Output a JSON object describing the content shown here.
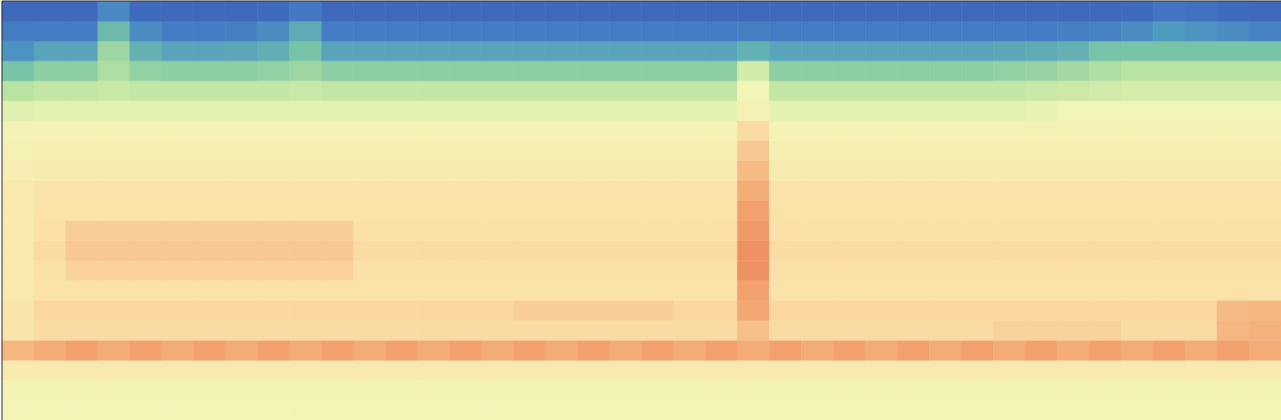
{
  "chart_data": {
    "type": "heatmap",
    "tick_labels": false,
    "colorbar": {
      "range": [
        0,
        100
      ],
      "colors": [
        "#3b5fb5",
        "#4479c4",
        "#4f9bc0",
        "#74c2a8",
        "#b9e3a0",
        "#f3f6b8",
        "#fbe0a8",
        "#f3a570",
        "#d9452c"
      ]
    },
    "cells": [
      [
        5,
        5,
        5,
        18,
        6,
        5,
        5,
        5,
        6,
        12,
        5,
        5,
        5,
        5,
        5,
        5,
        5,
        5,
        5,
        5,
        5,
        5,
        5,
        5,
        5,
        5,
        5,
        5,
        5,
        5,
        5,
        5,
        5,
        5,
        5,
        6,
        10,
        9,
        6,
        5
      ],
      [
        14,
        14,
        14,
        35,
        20,
        14,
        14,
        15,
        20,
        30,
        14,
        14,
        14,
        14,
        14,
        14,
        14,
        14,
        14,
        14,
        14,
        14,
        14,
        15,
        14,
        14,
        14,
        14,
        14,
        14,
        14,
        14,
        14,
        15,
        16,
        20,
        25,
        22,
        20,
        16
      ],
      [
        22,
        28,
        28,
        45,
        32,
        28,
        28,
        29,
        31,
        38,
        28,
        28,
        28,
        28,
        28,
        28,
        28,
        28,
        28,
        28,
        28,
        28,
        28,
        32,
        28,
        28,
        28,
        28,
        28,
        28,
        28,
        29,
        30,
        32,
        38,
        38,
        38,
        38,
        38,
        38
      ],
      [
        38,
        42,
        42,
        48,
        43,
        42,
        42,
        42,
        43,
        45,
        42,
        42,
        42,
        42,
        42,
        42,
        42,
        42,
        42,
        42,
        42,
        42,
        42,
        55,
        42,
        42,
        42,
        42,
        42,
        42,
        42,
        43,
        44,
        46,
        48,
        50,
        50,
        50,
        50,
        50
      ],
      [
        50,
        52,
        52,
        53,
        52,
        52,
        52,
        52,
        52,
        53,
        52,
        52,
        52,
        52,
        52,
        52,
        52,
        52,
        52,
        52,
        52,
        52,
        52,
        62,
        52,
        52,
        52,
        52,
        52,
        52,
        52,
        52,
        53,
        54,
        55,
        56,
        56,
        56,
        56,
        56
      ],
      [
        58,
        59,
        59,
        59,
        59,
        59,
        59,
        59,
        59,
        59,
        59,
        59,
        59,
        59,
        59,
        59,
        59,
        59,
        59,
        59,
        59,
        59,
        59,
        66,
        59,
        59,
        59,
        59,
        59,
        59,
        59,
        59,
        60,
        62,
        62,
        62,
        62,
        62,
        62,
        62
      ],
      [
        64,
        65,
        65,
        65,
        65,
        65,
        65,
        65,
        65,
        65,
        65,
        65,
        65,
        65,
        65,
        65,
        65,
        65,
        65,
        65,
        65,
        65,
        65,
        76,
        65,
        65,
        65,
        65,
        65,
        65,
        65,
        65,
        65,
        65,
        65,
        65,
        65,
        65,
        65,
        65
      ],
      [
        66,
        67,
        67,
        67,
        67,
        67,
        67,
        67,
        67,
        67,
        67,
        67,
        67,
        67,
        67,
        67,
        67,
        67,
        67,
        67,
        67,
        67,
        67,
        80,
        67,
        67,
        67,
        67,
        67,
        67,
        67,
        67,
        67,
        67,
        67,
        67,
        67,
        67,
        67,
        67
      ],
      [
        68,
        69,
        69,
        69,
        69,
        69,
        69,
        69,
        69,
        69,
        69,
        69,
        69,
        69,
        69,
        69,
        69,
        69,
        69,
        69,
        69,
        69,
        69,
        83,
        69,
        69,
        69,
        69,
        69,
        69,
        69,
        69,
        69,
        69,
        69,
        69,
        69,
        69,
        69,
        69
      ],
      [
        70,
        73,
        73,
        73,
        73,
        73,
        73,
        73,
        73,
        73,
        73,
        73,
        73,
        73,
        73,
        73,
        73,
        73,
        73,
        73,
        73,
        73,
        73,
        86,
        73,
        73,
        73,
        73,
        73,
        73,
        73,
        73,
        73,
        73,
        73,
        73,
        73,
        73,
        73,
        73
      ],
      [
        70,
        74,
        74,
        74,
        74,
        74,
        74,
        74,
        74,
        74,
        74,
        74,
        74,
        74,
        74,
        74,
        74,
        74,
        74,
        74,
        74,
        74,
        74,
        88,
        74,
        74,
        74,
        74,
        74,
        74,
        74,
        74,
        74,
        74,
        74,
        74,
        74,
        74,
        74,
        74
      ],
      [
        70,
        75,
        79,
        79,
        79,
        79,
        79,
        79,
        79,
        79,
        79,
        75,
        75,
        75,
        75,
        75,
        75,
        75,
        75,
        75,
        75,
        75,
        75,
        89,
        75,
        75,
        75,
        75,
        75,
        75,
        75,
        75,
        75,
        75,
        75,
        75,
        75,
        75,
        75,
        75
      ],
      [
        70,
        76,
        80,
        80,
        80,
        80,
        80,
        80,
        80,
        80,
        80,
        76,
        76,
        76,
        76,
        76,
        76,
        76,
        76,
        76,
        76,
        76,
        76,
        90,
        76,
        76,
        76,
        76,
        76,
        76,
        76,
        76,
        76,
        76,
        76,
        76,
        76,
        76,
        76,
        76
      ],
      [
        70,
        75,
        78,
        78,
        78,
        78,
        78,
        78,
        78,
        78,
        78,
        75,
        75,
        75,
        75,
        75,
        75,
        75,
        75,
        75,
        75,
        75,
        75,
        90,
        75,
        75,
        75,
        75,
        75,
        75,
        75,
        75,
        75,
        75,
        75,
        75,
        75,
        75,
        75,
        75
      ],
      [
        70,
        74,
        74,
        74,
        74,
        74,
        74,
        74,
        74,
        74,
        74,
        74,
        74,
        74,
        74,
        74,
        74,
        74,
        74,
        74,
        74,
        74,
        74,
        88,
        74,
        74,
        74,
        74,
        74,
        74,
        74,
        74,
        74,
        74,
        74,
        74,
        74,
        74,
        74,
        74
      ],
      [
        72,
        77,
        77,
        77,
        77,
        77,
        77,
        77,
        77,
        77,
        77,
        77,
        77,
        77,
        77,
        77,
        79,
        79,
        79,
        79,
        79,
        77,
        77,
        87,
        77,
        77,
        77,
        77,
        77,
        77,
        77,
        77,
        77,
        77,
        77,
        77,
        77,
        77,
        83,
        84
      ],
      [
        72,
        76,
        76,
        76,
        76,
        76,
        76,
        76,
        76,
        76,
        76,
        76,
        76,
        76,
        76,
        76,
        76,
        76,
        76,
        76,
        76,
        76,
        76,
        82,
        76,
        76,
        76,
        76,
        76,
        76,
        76,
        78,
        78,
        78,
        78,
        76,
        76,
        76,
        84,
        85
      ],
      [
        84,
        86,
        88,
        86,
        88,
        86,
        88,
        86,
        88,
        86,
        88,
        86,
        88,
        86,
        88,
        86,
        88,
        86,
        88,
        86,
        88,
        86,
        88,
        86,
        88,
        86,
        88,
        86,
        88,
        86,
        88,
        86,
        88,
        86,
        88,
        86,
        88,
        86,
        88,
        86
      ],
      [
        70,
        70,
        70,
        70,
        70,
        70,
        70,
        70,
        70,
        70,
        70,
        70,
        70,
        70,
        70,
        70,
        70,
        70,
        70,
        70,
        70,
        70,
        70,
        70,
        70,
        70,
        70,
        70,
        70,
        70,
        70,
        70,
        70,
        70,
        70,
        70,
        70,
        70,
        70,
        70
      ],
      [
        64,
        64,
        64,
        64,
        64,
        64,
        64,
        64,
        64,
        64,
        64,
        64,
        64,
        64,
        64,
        64,
        64,
        64,
        64,
        64,
        64,
        64,
        64,
        64,
        64,
        64,
        64,
        64,
        64,
        64,
        64,
        64,
        64,
        64,
        64,
        64,
        64,
        64,
        64,
        64
      ],
      [
        63,
        63,
        63,
        63,
        63,
        63,
        63,
        63,
        63,
        63,
        63,
        63,
        63,
        63,
        63,
        63,
        63,
        63,
        63,
        63,
        63,
        63,
        63,
        63,
        63,
        63,
        63,
        63,
        63,
        63,
        63,
        63,
        63,
        63,
        63,
        63,
        63,
        63,
        63,
        63
      ]
    ]
  }
}
